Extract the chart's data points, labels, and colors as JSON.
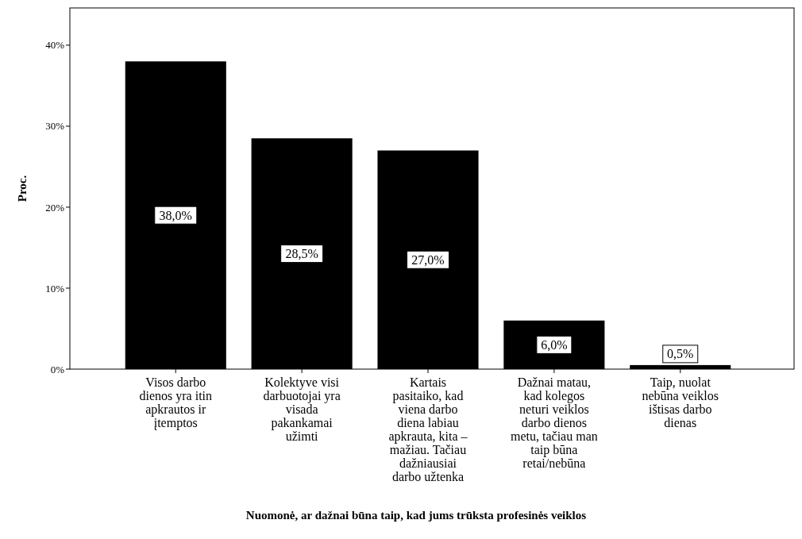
{
  "chart_data": {
    "type": "bar",
    "xlabel": "Nuomonė, ar dažnai būna taip, kad jums trūksta profesinės veiklos",
    "ylabel": "Proc.",
    "categories": [
      "Visos darbo dienos yra itin apkrautos ir įtemptos",
      "Kolektyve visi darbuotojai yra visada pakankamai užimti",
      "Kartais pasitaiko, kad viena darbo diena labiau apkrauta, kita – mažiau. Tačiau dažniausiai darbo užtenka",
      "Dažnai matau, kad kolegos neturi veiklos darbo dienos metu, tačiau man taip būna retai/nebūna",
      "Taip, nuolat nebūna veiklos ištisas darbo dienas"
    ],
    "values": [
      38.0,
      28.5,
      27.0,
      6.0,
      0.5
    ],
    "value_labels": [
      "38,0%",
      "28,5%",
      "27,0%",
      "6,0%",
      "0,5%"
    ],
    "color": "#000000",
    "ylim": [
      0,
      44.6
    ],
    "yticks": [
      {
        "value": 0,
        "label": "0%"
      },
      {
        "value": 10,
        "label": "10%"
      },
      {
        "value": 20,
        "label": "20%"
      },
      {
        "value": 30,
        "label": "30%"
      },
      {
        "value": 40,
        "label": "40%"
      }
    ],
    "grid": false
  }
}
